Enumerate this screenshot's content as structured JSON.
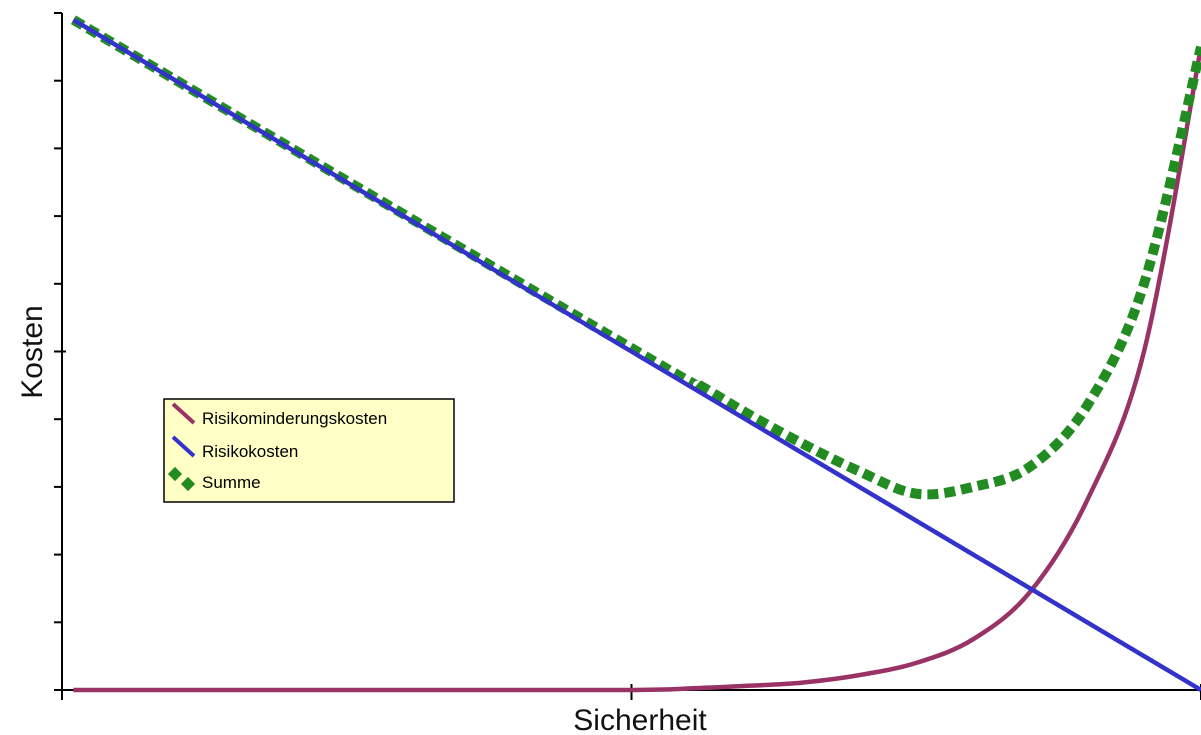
{
  "chart_data": {
    "type": "line",
    "title": "",
    "xlabel": "Sicherheit",
    "ylabel": "Kosten",
    "xlim": [
      0,
      1
    ],
    "ylim": [
      0,
      1
    ],
    "x_ticks": [
      0,
      0.5,
      1
    ],
    "y_ticks": [
      0,
      0.1,
      0.2,
      0.3,
      0.4,
      0.5,
      0.6,
      0.7,
      0.8,
      0.9,
      1.0
    ],
    "grid": false,
    "legend_placement": "center-left",
    "series": [
      {
        "name": "Risikominderungskosten",
        "color": "#993366",
        "style": "solid",
        "x": [
          0.01,
          0.3,
          0.5,
          0.56,
          0.6,
          0.65,
          0.7,
          0.75,
          0.8,
          0.85,
          0.9,
          0.95,
          1.0
        ],
        "y": [
          0.0,
          0.0,
          0.0,
          0.003,
          0.006,
          0.011,
          0.022,
          0.04,
          0.075,
          0.145,
          0.28,
          0.5,
          0.95
        ]
      },
      {
        "name": "Risikokosten",
        "color": "#3333cc",
        "style": "solid",
        "x": [
          0.01,
          1.0
        ],
        "y": [
          0.99,
          0.0
        ]
      },
      {
        "name": "Summe",
        "color": "#228b22",
        "style": "dashed",
        "x": [
          0.01,
          0.5,
          0.56,
          0.6,
          0.65,
          0.7,
          0.75,
          0.8,
          0.85,
          0.9,
          0.95,
          1.0
        ],
        "y": [
          0.99,
          0.505,
          0.45,
          0.41,
          0.364,
          0.323,
          0.29,
          0.3,
          0.33,
          0.42,
          0.6,
          0.95
        ]
      }
    ]
  }
}
